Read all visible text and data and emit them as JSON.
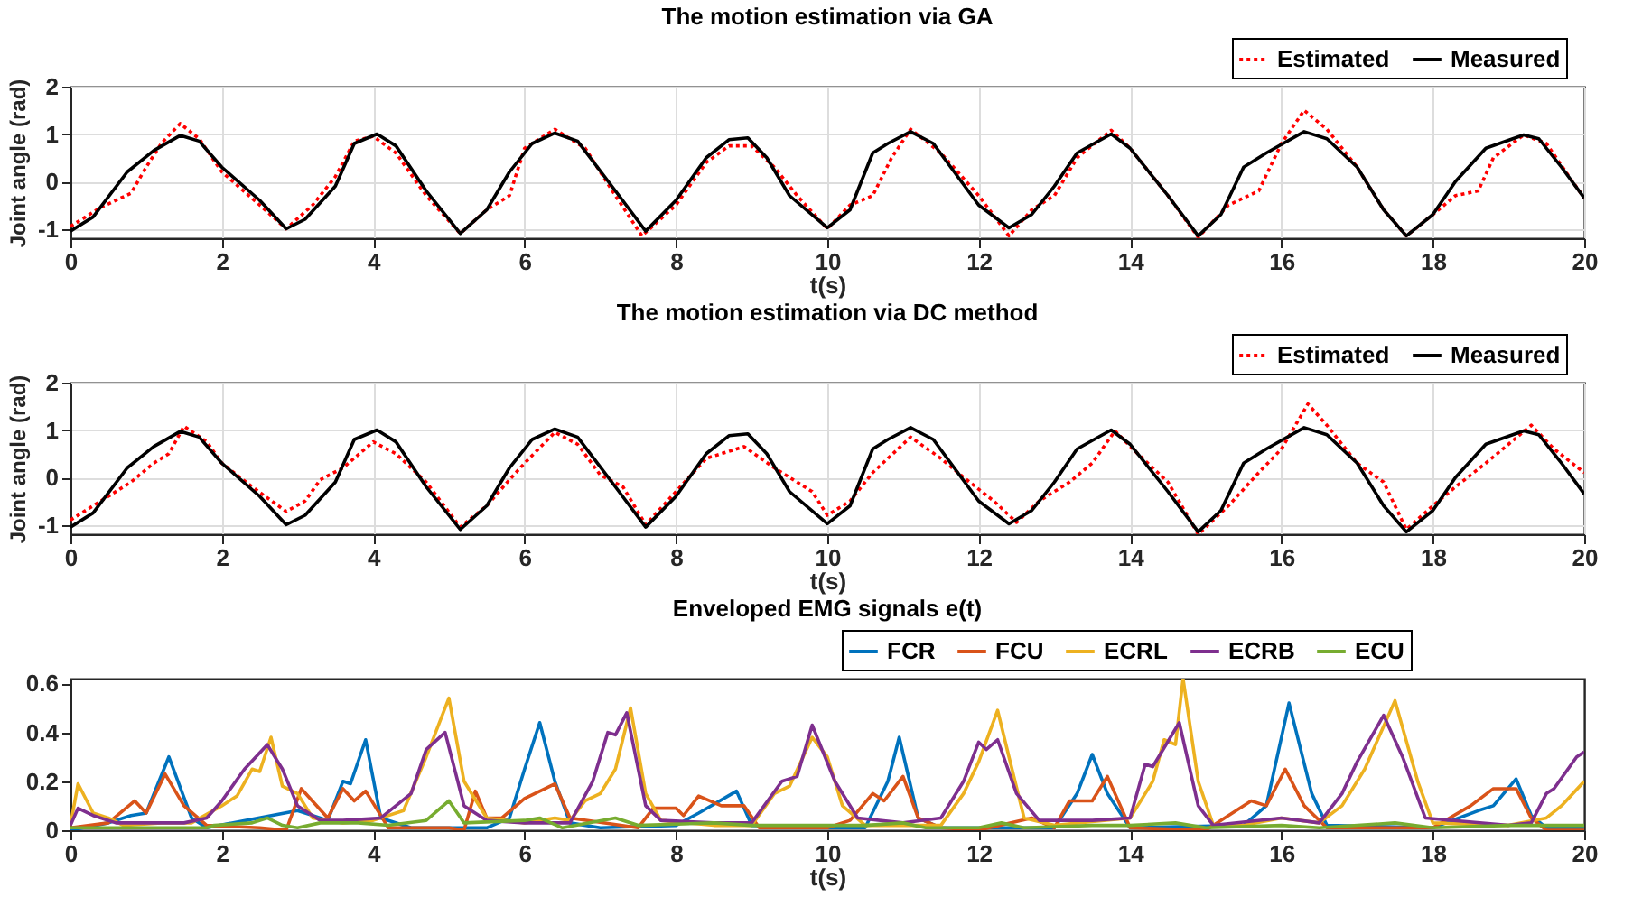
{
  "chart_data": [
    {
      "type": "line",
      "title": "The motion estimation via GA",
      "xlabel": "t(s)",
      "ylabel": "Joint angle (rad)",
      "xlim": [
        0,
        20
      ],
      "ylim": [
        -1.2,
        2
      ],
      "xticks": [
        0,
        2,
        4,
        6,
        8,
        10,
        12,
        14,
        16,
        18,
        20
      ],
      "yticks": [
        -1,
        0,
        1,
        2
      ],
      "grid": true,
      "legend": "top right",
      "series": [
        {
          "name": "Estimated",
          "color": "#ff0000",
          "line_style": "dotted",
          "x": [
            0,
            0.4,
            0.8,
            1.0,
            1.2,
            1.45,
            1.7,
            2.0,
            2.5,
            2.85,
            3.2,
            3.5,
            3.75,
            4.0,
            4.3,
            4.7,
            5.15,
            5.5,
            5.8,
            6.0,
            6.4,
            6.8,
            7.2,
            7.55,
            8.0,
            8.4,
            8.7,
            9.0,
            9.3,
            9.6,
            10.0,
            10.3,
            10.6,
            10.85,
            11.1,
            11.5,
            12.0,
            12.4,
            12.7,
            13.0,
            13.3,
            13.75,
            14.0,
            14.5,
            14.9,
            15.3,
            15.7,
            16.0,
            16.3,
            16.6,
            17.0,
            17.35,
            17.65,
            18.0,
            18.3,
            18.6,
            18.8,
            19.2,
            19.5,
            19.8,
            20.0
          ],
          "values": [
            -0.95,
            -0.55,
            -0.25,
            0.3,
            0.8,
            1.22,
            0.9,
            0.2,
            -0.5,
            -1.0,
            -0.5,
            0.1,
            0.85,
            0.95,
            0.6,
            -0.3,
            -1.1,
            -0.6,
            -0.3,
            0.7,
            1.1,
            0.7,
            -0.3,
            -1.15,
            -0.5,
            0.4,
            0.75,
            0.75,
            0.3,
            -0.3,
            -1.0,
            -0.5,
            -0.3,
            0.5,
            1.1,
            0.6,
            -0.3,
            -1.15,
            -0.6,
            -0.3,
            0.5,
            1.08,
            0.7,
            -0.3,
            -1.18,
            -0.5,
            -0.2,
            0.8,
            1.5,
            1.1,
            0.3,
            -0.6,
            -1.15,
            -0.7,
            -0.3,
            -0.2,
            0.5,
            0.98,
            0.8,
            0.1,
            -0.35
          ]
        },
        {
          "name": "Measured",
          "color": "#000000",
          "line_style": "solid",
          "x": [
            0,
            0.3,
            0.75,
            1.1,
            1.45,
            1.7,
            2.0,
            2.5,
            2.85,
            3.1,
            3.5,
            3.75,
            4.05,
            4.3,
            4.7,
            5.15,
            5.5,
            5.8,
            6.1,
            6.4,
            6.7,
            7.2,
            7.6,
            8.0,
            8.4,
            8.7,
            8.95,
            9.2,
            9.5,
            10.0,
            10.3,
            10.6,
            10.8,
            11.1,
            11.4,
            12.0,
            12.4,
            12.7,
            13.0,
            13.3,
            13.75,
            14.0,
            14.5,
            14.9,
            15.2,
            15.5,
            15.8,
            16.3,
            16.6,
            17.0,
            17.35,
            17.65,
            18.0,
            18.3,
            18.7,
            19.2,
            19.4,
            19.7,
            20.0
          ],
          "values": [
            -1.05,
            -0.75,
            0.2,
            0.65,
            0.97,
            0.85,
            0.3,
            -0.4,
            -1.0,
            -0.8,
            -0.1,
            0.8,
            1.0,
            0.75,
            -0.2,
            -1.1,
            -0.6,
            0.2,
            0.8,
            1.02,
            0.85,
            -0.2,
            -1.05,
            -0.4,
            0.5,
            0.88,
            0.92,
            0.5,
            -0.3,
            -0.98,
            -0.6,
            0.6,
            0.8,
            1.05,
            0.8,
            -0.5,
            -0.98,
            -0.7,
            -0.1,
            0.6,
            1.0,
            0.7,
            -0.3,
            -1.15,
            -0.7,
            0.3,
            0.6,
            1.05,
            0.9,
            0.3,
            -0.6,
            -1.15,
            -0.7,
            0.0,
            0.7,
            0.98,
            0.9,
            0.3,
            -0.35
          ]
        }
      ]
    },
    {
      "type": "line",
      "title": "The motion estimation via DC method",
      "xlabel": "t(s)",
      "ylabel": "Joint angle (rad)",
      "xlim": [
        0,
        20
      ],
      "ylim": [
        -1.2,
        2
      ],
      "xticks": [
        0,
        2,
        4,
        6,
        8,
        10,
        12,
        14,
        16,
        18,
        20
      ],
      "yticks": [
        -1,
        0,
        1,
        2
      ],
      "grid": true,
      "legend": "top right",
      "series": [
        {
          "name": "Estimated",
          "color": "#ff0000",
          "line_style": "dotted",
          "x": [
            0,
            0.4,
            0.8,
            1.1,
            1.3,
            1.5,
            1.8,
            2.0,
            2.4,
            2.85,
            3.1,
            3.3,
            3.6,
            4.0,
            4.3,
            4.7,
            5.15,
            5.5,
            5.8,
            6.0,
            6.4,
            6.7,
            7.0,
            7.3,
            7.6,
            8.0,
            8.4,
            8.9,
            9.3,
            9.8,
            10.0,
            10.3,
            10.6,
            11.1,
            11.5,
            11.8,
            12.2,
            12.5,
            12.8,
            13.2,
            13.5,
            13.8,
            14.1,
            14.5,
            14.9,
            15.3,
            15.7,
            16.0,
            16.35,
            16.6,
            17.0,
            17.35,
            17.65,
            18.0,
            18.3,
            18.7,
            19.0,
            19.3,
            19.6,
            20.0
          ],
          "values": [
            -0.9,
            -0.5,
            -0.1,
            0.3,
            0.5,
            1.08,
            0.75,
            0.3,
            -0.2,
            -0.72,
            -0.5,
            -0.05,
            0.2,
            0.75,
            0.5,
            -0.1,
            -1.05,
            -0.6,
            -0.05,
            0.3,
            0.95,
            0.7,
            0.05,
            -0.2,
            -1.0,
            -0.3,
            0.4,
            0.65,
            0.2,
            -0.3,
            -0.8,
            -0.5,
            0.1,
            0.85,
            0.4,
            0.0,
            -0.5,
            -0.95,
            -0.5,
            -0.1,
            0.3,
            0.98,
            0.5,
            -0.1,
            -1.2,
            -0.6,
            0.1,
            0.6,
            1.55,
            1.1,
            0.3,
            -0.1,
            -1.1,
            -0.6,
            -0.2,
            0.3,
            0.7,
            1.1,
            0.6,
            0.1
          ]
        },
        {
          "name": "Measured",
          "color": "#000000",
          "line_style": "solid",
          "x": [
            0,
            0.3,
            0.75,
            1.1,
            1.45,
            1.7,
            2.0,
            2.5,
            2.85,
            3.1,
            3.5,
            3.75,
            4.05,
            4.3,
            4.7,
            5.15,
            5.5,
            5.8,
            6.1,
            6.4,
            6.7,
            7.2,
            7.6,
            8.0,
            8.4,
            8.7,
            8.95,
            9.2,
            9.5,
            10.0,
            10.3,
            10.6,
            10.8,
            11.1,
            11.4,
            12.0,
            12.4,
            12.7,
            13.0,
            13.3,
            13.75,
            14.0,
            14.5,
            14.9,
            15.2,
            15.5,
            15.8,
            16.3,
            16.6,
            17.0,
            17.35,
            17.65,
            18.0,
            18.3,
            18.7,
            19.2,
            19.4,
            19.7,
            20.0
          ],
          "values": [
            -1.05,
            -0.75,
            0.2,
            0.65,
            0.97,
            0.85,
            0.3,
            -0.4,
            -1.0,
            -0.8,
            -0.1,
            0.8,
            1.0,
            0.75,
            -0.2,
            -1.1,
            -0.6,
            0.2,
            0.8,
            1.02,
            0.85,
            -0.2,
            -1.05,
            -0.4,
            0.5,
            0.88,
            0.92,
            0.5,
            -0.3,
            -0.98,
            -0.6,
            0.6,
            0.8,
            1.05,
            0.8,
            -0.5,
            -0.98,
            -0.7,
            -0.1,
            0.6,
            1.0,
            0.7,
            -0.3,
            -1.15,
            -0.7,
            0.3,
            0.6,
            1.05,
            0.9,
            0.3,
            -0.6,
            -1.15,
            -0.7,
            0.0,
            0.7,
            0.98,
            0.9,
            0.3,
            -0.35
          ]
        }
      ]
    },
    {
      "type": "line",
      "title": "Enveloped EMG signals e(t)",
      "xlabel": "t(s)",
      "xlim": [
        0,
        20
      ],
      "ylim": [
        0,
        0.62
      ],
      "xticks": [
        0,
        2,
        4,
        6,
        8,
        10,
        12,
        14,
        16,
        18,
        20
      ],
      "yticks": [
        0,
        0.2,
        0.4,
        0.6
      ],
      "legend": "top right",
      "series": [
        {
          "name": "FCR",
          "color": "#0072bd",
          "line_style": "solid",
          "x": [
            0,
            0.5,
            0.8,
            1.0,
            1.3,
            1.6,
            1.8,
            3.0,
            3.4,
            3.6,
            3.7,
            3.9,
            4.1,
            4.5,
            5.5,
            5.8,
            6.0,
            6.2,
            6.4,
            6.6,
            7.0,
            8.0,
            8.3,
            8.8,
            9.0,
            10.0,
            10.5,
            10.8,
            10.95,
            11.2,
            11.5,
            13.0,
            13.3,
            13.5,
            13.7,
            14.0,
            15.5,
            15.8,
            16.1,
            16.4,
            16.6,
            18.0,
            18.6,
            18.8,
            19.1,
            19.3,
            19.5,
            20.0
          ],
          "values": [
            0,
            0.03,
            0.06,
            0.07,
            0.3,
            0.05,
            0.01,
            0.08,
            0.04,
            0.2,
            0.19,
            0.37,
            0.05,
            0.01,
            0.01,
            0.05,
            0.25,
            0.44,
            0.2,
            0.03,
            0.01,
            0.02,
            0.07,
            0.16,
            0.02,
            0.01,
            0.01,
            0.2,
            0.38,
            0.05,
            0.01,
            0.01,
            0.15,
            0.31,
            0.15,
            0.01,
            0.02,
            0.1,
            0.52,
            0.15,
            0.02,
            0.01,
            0.08,
            0.1,
            0.21,
            0.06,
            0.01,
            0.01
          ]
        },
        {
          "name": "FCU",
          "color": "#d95319",
          "line_style": "solid",
          "x": [
            0,
            0.5,
            0.85,
            1.0,
            1.25,
            1.5,
            1.8,
            2.5,
            2.85,
            3.05,
            3.4,
            3.6,
            3.75,
            3.9,
            4.2,
            5.0,
            5.2,
            5.35,
            5.5,
            5.7,
            6.0,
            6.4,
            6.6,
            7.5,
            7.7,
            8.0,
            8.1,
            8.3,
            8.6,
            8.9,
            9.1,
            10.0,
            10.3,
            10.6,
            10.75,
            11.0,
            11.2,
            11.5,
            12.0,
            12.7,
            13.0,
            13.2,
            13.5,
            13.7,
            14.0,
            15.0,
            15.6,
            15.8,
            16.05,
            16.3,
            16.6,
            18.0,
            18.5,
            18.8,
            19.1,
            19.3,
            19.5,
            20.0
          ],
          "values": [
            0.01,
            0.03,
            0.12,
            0.07,
            0.23,
            0.1,
            0.02,
            0.01,
            0,
            0.17,
            0.05,
            0.17,
            0.12,
            0.16,
            0.01,
            0.01,
            0,
            0.16,
            0.05,
            0.05,
            0.13,
            0.19,
            0.05,
            0.01,
            0.09,
            0.09,
            0.06,
            0.14,
            0.1,
            0.1,
            0.01,
            0.01,
            0.04,
            0.15,
            0.12,
            0.22,
            0.05,
            0.01,
            0,
            0.05,
            0.01,
            0.12,
            0.12,
            0.22,
            0.01,
            0,
            0.12,
            0.1,
            0.25,
            0.1,
            0.01,
            0.01,
            0.1,
            0.17,
            0.17,
            0.05,
            0,
            0
          ]
        },
        {
          "name": "ECRL",
          "color": "#edb120",
          "line_style": "solid",
          "x": [
            0,
            0.1,
            0.3,
            0.5,
            0.7,
            1.2,
            1.6,
            2.0,
            2.2,
            2.4,
            2.5,
            2.65,
            2.8,
            3.0,
            3.2,
            3.6,
            4.0,
            4.4,
            4.7,
            5.0,
            5.2,
            5.5,
            6.0,
            6.4,
            6.6,
            6.8,
            7.0,
            7.2,
            7.4,
            7.6,
            7.8,
            8.5,
            9.0,
            9.3,
            9.5,
            9.8,
            10.0,
            10.2,
            10.5,
            11.5,
            11.8,
            12.0,
            12.25,
            12.4,
            12.6,
            13.0,
            14.0,
            14.3,
            14.45,
            14.6,
            14.7,
            14.9,
            15.1,
            15.5,
            16.0,
            16.5,
            16.8,
            17.1,
            17.5,
            17.8,
            18.0,
            19.0,
            19.5,
            19.7,
            20.0
          ],
          "values": [
            0.02,
            0.19,
            0.07,
            0.05,
            0.02,
            0.03,
            0.03,
            0.1,
            0.14,
            0.25,
            0.24,
            0.38,
            0.18,
            0.15,
            0.05,
            0.03,
            0.04,
            0.08,
            0.3,
            0.54,
            0.2,
            0.05,
            0.03,
            0.05,
            0.04,
            0.12,
            0.15,
            0.25,
            0.5,
            0.15,
            0.04,
            0.02,
            0.02,
            0.15,
            0.18,
            0.38,
            0.3,
            0.1,
            0.02,
            0.02,
            0.15,
            0.28,
            0.49,
            0.3,
            0.05,
            0.02,
            0.05,
            0.2,
            0.37,
            0.35,
            0.62,
            0.2,
            0.02,
            0.02,
            0.05,
            0.03,
            0.1,
            0.25,
            0.53,
            0.2,
            0.03,
            0.02,
            0.05,
            0.1,
            0.2
          ]
        },
        {
          "name": "ECRB",
          "color": "#7e2f8e",
          "line_style": "solid",
          "x": [
            0,
            0.1,
            0.3,
            0.6,
            1.5,
            1.8,
            2.0,
            2.3,
            2.6,
            2.8,
            3.0,
            3.3,
            3.6,
            4.1,
            4.5,
            4.7,
            4.95,
            5.2,
            5.5,
            6.0,
            6.4,
            6.6,
            6.9,
            7.1,
            7.2,
            7.35,
            7.6,
            7.8,
            8.5,
            9.0,
            9.4,
            9.6,
            9.8,
            10.1,
            10.4,
            11.0,
            11.5,
            11.8,
            12.0,
            12.1,
            12.25,
            12.5,
            12.8,
            13.5,
            14.0,
            14.2,
            14.3,
            14.65,
            14.9,
            15.1,
            16.0,
            16.5,
            16.8,
            17.0,
            17.35,
            17.6,
            17.9,
            19.0,
            19.3,
            19.5,
            19.6,
            19.9,
            20.0
          ],
          "values": [
            0.02,
            0.09,
            0.06,
            0.03,
            0.03,
            0.05,
            0.12,
            0.25,
            0.35,
            0.25,
            0.1,
            0.04,
            0.04,
            0.05,
            0.15,
            0.33,
            0.4,
            0.1,
            0.04,
            0.03,
            0.03,
            0.03,
            0.2,
            0.4,
            0.39,
            0.48,
            0.1,
            0.04,
            0.03,
            0.03,
            0.2,
            0.22,
            0.43,
            0.2,
            0.05,
            0.03,
            0.05,
            0.2,
            0.36,
            0.33,
            0.37,
            0.15,
            0.04,
            0.04,
            0.05,
            0.27,
            0.26,
            0.44,
            0.1,
            0.02,
            0.05,
            0.03,
            0.15,
            0.28,
            0.47,
            0.3,
            0.05,
            0.02,
            0.03,
            0.15,
            0.17,
            0.3,
            0.32
          ]
        },
        {
          "name": "ECU",
          "color": "#77ac30",
          "line_style": "solid",
          "x": [
            0,
            1.0,
            1.8,
            1.9,
            2.4,
            2.6,
            2.8,
            3.0,
            3.3,
            3.8,
            4.2,
            4.7,
            5.0,
            5.2,
            6.0,
            6.2,
            6.5,
            7.2,
            7.5,
            8.5,
            9.0,
            10.0,
            10.5,
            11.0,
            11.3,
            12.0,
            12.3,
            12.6,
            13.5,
            14.0,
            14.6,
            15.0,
            16.0,
            16.5,
            17.5,
            18.0,
            19.0,
            20.0
          ],
          "values": [
            0.01,
            0.01,
            0.01,
            0.02,
            0.03,
            0.05,
            0.02,
            0.01,
            0.03,
            0.03,
            0.02,
            0.04,
            0.12,
            0.03,
            0.04,
            0.05,
            0.01,
            0.05,
            0.02,
            0.03,
            0.02,
            0.02,
            0.02,
            0.03,
            0.01,
            0.01,
            0.03,
            0.01,
            0.02,
            0.02,
            0.03,
            0.01,
            0.02,
            0.01,
            0.03,
            0.01,
            0.02,
            0.02
          ]
        }
      ]
    }
  ]
}
